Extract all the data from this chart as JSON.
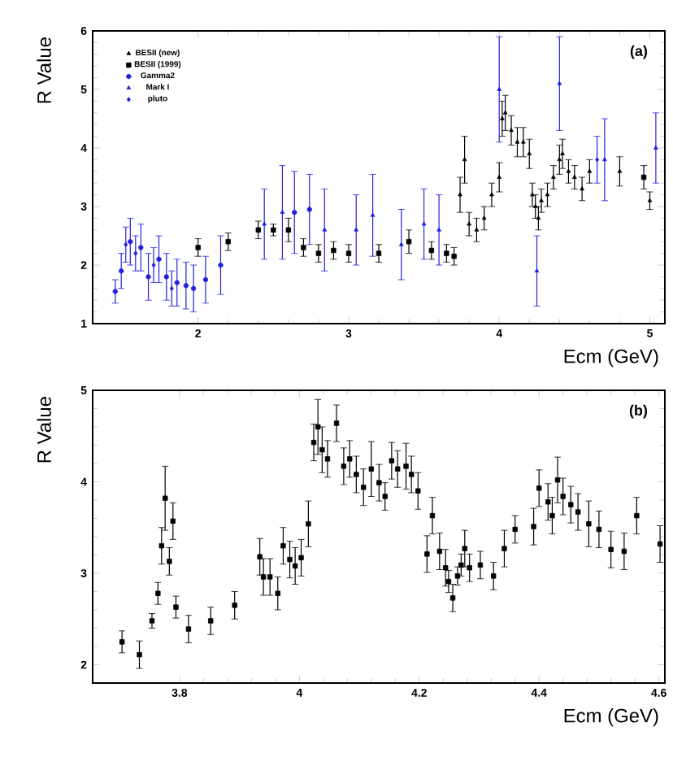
{
  "chart_data": [
    {
      "type": "scatter",
      "xlabel": "Ecm (GeV)",
      "ylabel": "R Value",
      "annotations": [
        "(a)"
      ],
      "xlim": [
        1.3,
        5.1
      ],
      "ylim": [
        1,
        6
      ],
      "xticks": [
        2,
        3,
        4,
        5
      ],
      "yticks": [
        1,
        2,
        3,
        4,
        5,
        6
      ],
      "legend": "top left",
      "series": [
        {
          "name": "BESII (new)",
          "color": "#000000",
          "marker": "triangle",
          "x": [
            3.74,
            3.77,
            3.8,
            3.85,
            3.9,
            3.95,
            4.0,
            4.02,
            4.04,
            4.08,
            4.12,
            4.16,
            4.2,
            4.22,
            4.24,
            4.26,
            4.28,
            4.32,
            4.36,
            4.4,
            4.42,
            4.46,
            4.5,
            4.55,
            4.6,
            4.8,
            5.0
          ],
          "values": [
            3.2,
            3.8,
            2.7,
            2.6,
            2.8,
            3.2,
            3.5,
            4.5,
            4.6,
            4.3,
            4.1,
            4.1,
            3.9,
            3.2,
            3.0,
            2.8,
            3.1,
            3.2,
            3.5,
            3.8,
            3.9,
            3.6,
            3.5,
            3.3,
            3.6,
            3.6,
            3.1
          ],
          "errors": [
            0.3,
            0.4,
            0.2,
            0.2,
            0.2,
            0.2,
            0.25,
            0.3,
            0.3,
            0.25,
            0.25,
            0.25,
            0.25,
            0.2,
            0.2,
            0.2,
            0.2,
            0.2,
            0.2,
            0.25,
            0.25,
            0.2,
            0.2,
            0.2,
            0.2,
            0.25,
            0.15
          ]
        },
        {
          "name": "BESII (1999)",
          "color": "#000000",
          "marker": "square",
          "x": [
            2.0,
            2.2,
            2.4,
            2.5,
            2.6,
            2.7,
            2.8,
            2.9,
            3.0,
            3.2,
            3.4,
            3.55,
            3.65,
            3.7,
            4.96
          ],
          "values": [
            2.3,
            2.4,
            2.6,
            2.6,
            2.6,
            2.3,
            2.2,
            2.25,
            2.2,
            2.2,
            2.4,
            2.25,
            2.2,
            2.15,
            3.5
          ],
          "errors": [
            0.15,
            0.15,
            0.15,
            0.1,
            0.2,
            0.15,
            0.15,
            0.15,
            0.15,
            0.15,
            0.2,
            0.15,
            0.15,
            0.15,
            0.2
          ]
        },
        {
          "name": "Gamma2",
          "color": "#2222dd",
          "marker": "circle",
          "x": [
            1.45,
            1.49,
            1.55,
            1.62,
            1.67,
            1.74,
            1.79,
            1.86,
            1.92,
            1.97,
            2.05,
            2.15,
            2.64,
            2.74
          ],
          "values": [
            1.55,
            1.9,
            2.4,
            2.3,
            1.8,
            2.1,
            1.8,
            1.7,
            1.65,
            1.6,
            1.75,
            2.0,
            2.9,
            2.95
          ],
          "errors": [
            0.2,
            0.3,
            0.4,
            0.4,
            0.4,
            0.4,
            0.4,
            0.4,
            0.4,
            0.4,
            0.4,
            0.5,
            0.7,
            0.6
          ]
        },
        {
          "name": "Mark I",
          "color": "#2222dd",
          "marker": "triangle",
          "x": [
            2.44,
            2.56,
            2.84,
            3.05,
            3.16,
            3.35,
            3.5,
            3.6,
            4.0,
            4.25,
            4.4,
            4.7,
            5.04
          ],
          "values": [
            2.7,
            2.9,
            2.6,
            2.6,
            2.85,
            2.35,
            2.7,
            2.6,
            5.0,
            1.9,
            5.1,
            3.8,
            4.0
          ],
          "errors": [
            0.6,
            0.8,
            0.7,
            0.6,
            0.7,
            0.6,
            0.6,
            0.6,
            0.9,
            0.6,
            0.8,
            0.7,
            0.6
          ]
        },
        {
          "name": "pluto",
          "color": "#2222dd",
          "marker": "diamond",
          "x": [
            1.52,
            1.585,
            1.705,
            1.825,
            4.65
          ],
          "values": [
            2.35,
            2.2,
            2.0,
            1.6,
            3.8
          ],
          "errors": [
            0.3,
            0.3,
            0.3,
            0.3,
            0.4
          ]
        }
      ]
    },
    {
      "type": "scatter",
      "xlabel": "Ecm (GeV)",
      "ylabel": "R Value",
      "annotations": [
        "(b)"
      ],
      "xlim": [
        3.655,
        4.61
      ],
      "ylim": [
        1.8,
        5
      ],
      "xticks": [
        3.8,
        4,
        4.2,
        4.4,
        4.6
      ],
      "yticks": [
        2,
        3,
        4,
        5
      ],
      "series": [
        {
          "color": "#000000",
          "marker": "square",
          "x": [
            3.704,
            3.733,
            3.754,
            3.764,
            3.77,
            3.776,
            3.783,
            3.789,
            3.794,
            3.815,
            3.852,
            3.892,
            3.934,
            3.94,
            3.951,
            3.964,
            3.973,
            3.984,
            3.993,
            4.003,
            4.015,
            4.024,
            4.031,
            4.038,
            4.047,
            4.062,
            4.074,
            4.084,
            4.095,
            4.107,
            4.12,
            4.133,
            4.143,
            4.154,
            4.164,
            4.178,
            4.187,
            4.198,
            4.213,
            4.222,
            4.234,
            4.244,
            4.249,
            4.256,
            4.264,
            4.27,
            4.276,
            4.284,
            4.302,
            4.324,
            4.342,
            4.36,
            4.391,
            4.4,
            4.415,
            4.422,
            4.431,
            4.44,
            4.453,
            4.465,
            4.483,
            4.5,
            4.52,
            4.542,
            4.563,
            4.602
          ],
          "values": [
            2.25,
            2.11,
            2.48,
            2.78,
            3.3,
            3.82,
            3.13,
            3.57,
            2.63,
            2.39,
            2.48,
            2.65,
            3.18,
            2.96,
            2.96,
            2.78,
            3.3,
            3.15,
            3.08,
            3.17,
            3.54,
            4.43,
            4.6,
            4.35,
            4.25,
            4.64,
            4.17,
            4.25,
            4.08,
            3.94,
            4.14,
            3.99,
            3.84,
            4.23,
            4.14,
            4.17,
            4.08,
            3.9,
            3.21,
            3.63,
            3.24,
            3.06,
            2.91,
            2.73,
            2.97,
            3.09,
            3.27,
            3.06,
            3.09,
            2.97,
            3.27,
            3.48,
            3.51,
            3.93,
            3.78,
            3.63,
            4.02,
            3.84,
            3.75,
            3.67,
            3.54,
            3.48,
            3.26,
            3.24,
            3.63,
            3.32
          ],
          "errors": [
            0.12,
            0.15,
            0.08,
            0.12,
            0.2,
            0.35,
            0.15,
            0.2,
            0.12,
            0.15,
            0.15,
            0.15,
            0.2,
            0.2,
            0.2,
            0.18,
            0.2,
            0.2,
            0.2,
            0.2,
            0.25,
            0.2,
            0.3,
            0.25,
            0.2,
            0.2,
            0.2,
            0.2,
            0.2,
            0.2,
            0.3,
            0.2,
            0.15,
            0.2,
            0.2,
            0.25,
            0.2,
            0.2,
            0.2,
            0.2,
            0.2,
            0.2,
            0.12,
            0.15,
            0.1,
            0.12,
            0.2,
            0.15,
            0.15,
            0.15,
            0.2,
            0.15,
            0.2,
            0.2,
            0.2,
            0.2,
            0.25,
            0.2,
            0.2,
            0.2,
            0.25,
            0.2,
            0.2,
            0.2,
            0.2,
            0.2
          ]
        }
      ]
    }
  ]
}
